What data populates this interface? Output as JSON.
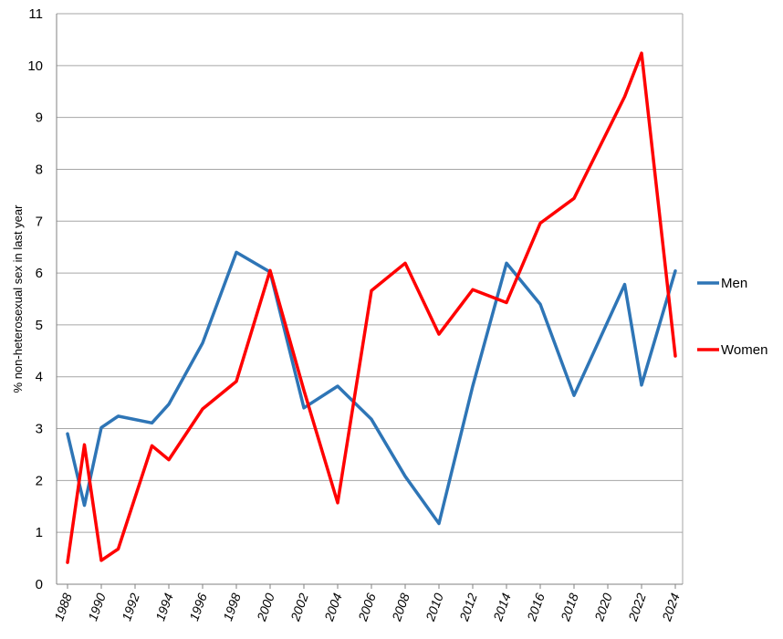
{
  "chart_data": {
    "type": "line",
    "ylabel": "% non-heterosexual sex in last year",
    "xlabel": "",
    "ylim": [
      0,
      11
    ],
    "y_ticks": [
      "0",
      "1",
      "2",
      "3",
      "4",
      "5",
      "6",
      "7",
      "8",
      "9",
      "10",
      "11"
    ],
    "x_ticks": [
      "1988",
      "1990",
      "1992",
      "1994",
      "1996",
      "1998",
      "2000",
      "2002",
      "2004",
      "2006",
      "2008",
      "2010",
      "2012",
      "2014",
      "2016",
      "2018",
      "2020",
      "2022",
      "2024"
    ],
    "xlim": [
      1988,
      2024
    ],
    "grid": true,
    "legend_position": "right",
    "series": [
      {
        "name": "Men",
        "color": "#2e75b6",
        "points": [
          [
            1988,
            2.9
          ],
          [
            1989,
            1.52
          ],
          [
            1990,
            3.02
          ],
          [
            1991,
            3.24
          ],
          [
            1993,
            3.11
          ],
          [
            1994,
            3.47
          ],
          [
            1996,
            4.65
          ],
          [
            1998,
            6.4
          ],
          [
            2000,
            6.02
          ],
          [
            2002,
            3.4
          ],
          [
            2004,
            3.82
          ],
          [
            2006,
            3.18
          ],
          [
            2008,
            2.08
          ],
          [
            2010,
            1.17
          ],
          [
            2012,
            3.82
          ],
          [
            2014,
            6.19
          ],
          [
            2016,
            5.4
          ],
          [
            2018,
            3.64
          ],
          [
            2021,
            5.78
          ],
          [
            2022,
            3.84
          ],
          [
            2024,
            6.04
          ]
        ]
      },
      {
        "name": "Women",
        "color": "#ff0000",
        "points": [
          [
            1988,
            0.42
          ],
          [
            1989,
            2.69
          ],
          [
            1990,
            0.46
          ],
          [
            1991,
            0.68
          ],
          [
            1993,
            2.67
          ],
          [
            1994,
            2.4
          ],
          [
            1996,
            3.38
          ],
          [
            1998,
            3.91
          ],
          [
            2000,
            6.05
          ],
          [
            2002,
            3.74
          ],
          [
            2004,
            1.57
          ],
          [
            2006,
            5.66
          ],
          [
            2008,
            6.19
          ],
          [
            2010,
            4.82
          ],
          [
            2012,
            5.68
          ],
          [
            2014,
            5.43
          ],
          [
            2016,
            6.96
          ],
          [
            2018,
            7.44
          ],
          [
            2021,
            9.4
          ],
          [
            2022,
            10.24
          ],
          [
            2024,
            4.4
          ]
        ]
      }
    ]
  }
}
